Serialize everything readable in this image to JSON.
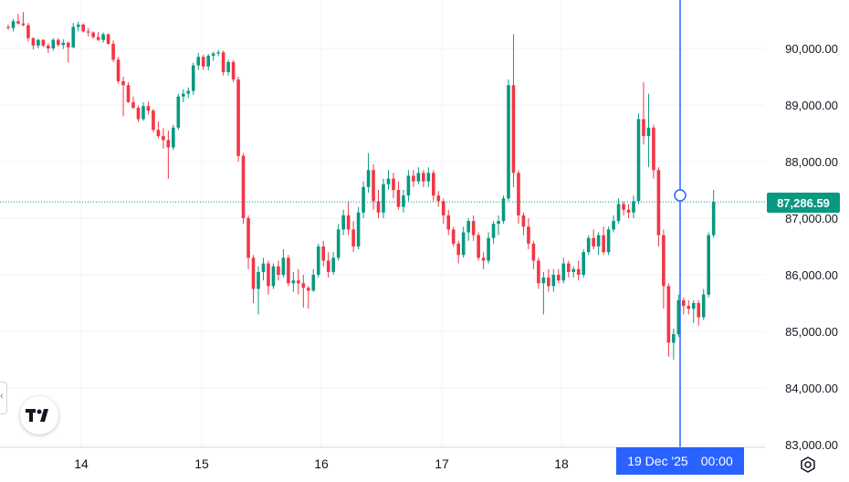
{
  "chart_data": {
    "type": "candlestick",
    "title": "",
    "xlabel": "",
    "ylabel": "",
    "ylim": [
      83000,
      90600
    ],
    "y_ticks": [
      "90,000.00",
      "89,000.00",
      "88,000.00",
      "87,000.00",
      "86,000.00",
      "85,000.00",
      "84,000.00",
      "83,000.00"
    ],
    "x_ticks": [
      "14",
      "15",
      "16",
      "17",
      "18"
    ],
    "last_price": "87,286.59",
    "crosshair_time": {
      "date": "19 Dec '25",
      "time": "00:00"
    },
    "candles": [
      [
        90380,
        90420,
        90330,
        90360
      ],
      [
        90360,
        90520,
        90300,
        90480
      ],
      [
        90480,
        90610,
        90420,
        90440
      ],
      [
        90440,
        90640,
        90390,
        90410
      ],
      [
        90410,
        90450,
        90120,
        90180
      ],
      [
        90180,
        90200,
        89980,
        90050
      ],
      [
        90050,
        90170,
        90000,
        90150
      ],
      [
        90150,
        90160,
        90020,
        90050
      ],
      [
        90050,
        90090,
        89920,
        90000
      ],
      [
        90000,
        90180,
        89960,
        90150
      ],
      [
        90150,
        90180,
        90030,
        90060
      ],
      [
        90060,
        90160,
        89990,
        90100
      ],
      [
        90100,
        90120,
        89750,
        90020
      ],
      [
        90020,
        90450,
        90000,
        90380
      ],
      [
        90380,
        90470,
        90300,
        90420
      ],
      [
        90420,
        90440,
        90280,
        90300
      ],
      [
        90300,
        90360,
        90210,
        90280
      ],
      [
        90280,
        90300,
        90170,
        90200
      ],
      [
        90200,
        90290,
        90130,
        90150
      ],
      [
        90150,
        90280,
        90100,
        90250
      ],
      [
        90250,
        90260,
        90060,
        90080
      ],
      [
        90080,
        90140,
        89760,
        89800
      ],
      [
        89800,
        89850,
        89380,
        89420
      ],
      [
        89420,
        89500,
        88800,
        89350
      ],
      [
        89350,
        89400,
        89040,
        89050
      ],
      [
        89050,
        89150,
        88930,
        88950
      ],
      [
        88950,
        88990,
        88700,
        88750
      ],
      [
        88750,
        89050,
        88720,
        88980
      ],
      [
        88980,
        89060,
        88830,
        88900
      ],
      [
        88900,
        88930,
        88520,
        88560
      ],
      [
        88560,
        88710,
        88410,
        88450
      ],
      [
        88450,
        88590,
        88230,
        88380
      ],
      [
        88380,
        88550,
        87700,
        88250
      ],
      [
        88250,
        88650,
        88200,
        88600
      ],
      [
        88600,
        89200,
        88560,
        89150
      ],
      [
        89150,
        89280,
        89050,
        89200
      ],
      [
        89200,
        89310,
        89120,
        89250
      ],
      [
        89250,
        89750,
        89180,
        89700
      ],
      [
        89700,
        89920,
        89620,
        89850
      ],
      [
        89850,
        89890,
        89620,
        89680
      ],
      [
        89680,
        89900,
        89610,
        89870
      ],
      [
        89870,
        89940,
        89780,
        89910
      ],
      [
        89910,
        89970,
        89860,
        89930
      ],
      [
        89930,
        89960,
        89520,
        89580
      ],
      [
        89580,
        89800,
        89520,
        89760
      ],
      [
        89760,
        89790,
        89400,
        89450
      ],
      [
        89450,
        89500,
        88000,
        88100
      ],
      [
        88100,
        88150,
        86900,
        87000
      ],
      [
        87000,
        87050,
        86100,
        86300
      ],
      [
        86300,
        86350,
        85500,
        85750
      ],
      [
        85750,
        86150,
        85300,
        86050
      ],
      [
        86050,
        86300,
        85900,
        86200
      ],
      [
        86200,
        86250,
        85650,
        85800
      ],
      [
        85800,
        86200,
        85750,
        86150
      ],
      [
        86150,
        86250,
        85900,
        86000
      ],
      [
        86000,
        86450,
        85950,
        86300
      ],
      [
        86300,
        86350,
        85800,
        85850
      ],
      [
        85850,
        86050,
        85700,
        85900
      ],
      [
        85900,
        86100,
        85650,
        85850
      ],
      [
        85850,
        86000,
        85420,
        85770
      ],
      [
        85770,
        85800,
        85400,
        85720
      ],
      [
        85720,
        86100,
        85700,
        86000
      ],
      [
        86000,
        86550,
        85950,
        86500
      ],
      [
        86500,
        86600,
        86150,
        86250
      ],
      [
        86250,
        86400,
        85950,
        86050
      ],
      [
        86050,
        86400,
        86000,
        86300
      ],
      [
        86300,
        86900,
        86250,
        86800
      ],
      [
        86800,
        87150,
        86700,
        87050
      ],
      [
        87050,
        87300,
        86700,
        86800
      ],
      [
        86800,
        86950,
        86400,
        86500
      ],
      [
        86500,
        87200,
        86450,
        87100
      ],
      [
        87100,
        87650,
        87000,
        87550
      ],
      [
        87550,
        88150,
        87450,
        87850
      ],
      [
        87850,
        87950,
        87150,
        87300
      ],
      [
        87300,
        87500,
        87000,
        87100
      ],
      [
        87100,
        87700,
        87000,
        87600
      ],
      [
        87600,
        87850,
        87500,
        87700
      ],
      [
        87700,
        87800,
        87350,
        87500
      ],
      [
        87500,
        87650,
        87150,
        87200
      ],
      [
        87200,
        87500,
        87100,
        87400
      ],
      [
        87400,
        87850,
        87300,
        87750
      ],
      [
        87750,
        87850,
        87550,
        87650
      ],
      [
        87650,
        87900,
        87600,
        87800
      ],
      [
        87800,
        87850,
        87550,
        87650
      ],
      [
        87650,
        87900,
        87550,
        87800
      ],
      [
        87800,
        87850,
        87300,
        87400
      ],
      [
        87400,
        87480,
        87200,
        87300
      ],
      [
        87300,
        87350,
        86900,
        87050
      ],
      [
        87050,
        87150,
        86700,
        86800
      ],
      [
        86800,
        86850,
        86500,
        86550
      ],
      [
        86550,
        86600,
        86200,
        86350
      ],
      [
        86350,
        86850,
        86300,
        86750
      ],
      [
        86750,
        87000,
        86600,
        86950
      ],
      [
        86950,
        87050,
        86600,
        86700
      ],
      [
        86700,
        86750,
        86250,
        86300
      ],
      [
        86300,
        86400,
        86100,
        86250
      ],
      [
        86250,
        86750,
        86200,
        86650
      ],
      [
        86650,
        86950,
        86550,
        86900
      ],
      [
        86900,
        87050,
        86700,
        86950
      ],
      [
        86950,
        87400,
        86900,
        87350
      ],
      [
        87350,
        89450,
        87300,
        89350
      ],
      [
        89350,
        90250,
        87550,
        87800
      ],
      [
        87800,
        87850,
        86900,
        87050
      ],
      [
        87050,
        87100,
        86700,
        86850
      ],
      [
        86850,
        87000,
        86450,
        86550
      ],
      [
        86550,
        86600,
        86100,
        86250
      ],
      [
        86250,
        86300,
        85750,
        85850
      ],
      [
        85850,
        86050,
        85300,
        85950
      ],
      [
        85950,
        86100,
        85700,
        85800
      ],
      [
        85800,
        86100,
        85700,
        86000
      ],
      [
        86000,
        86100,
        85850,
        85900
      ],
      [
        85900,
        86300,
        85850,
        86200
      ],
      [
        86200,
        86250,
        85950,
        86050
      ],
      [
        86050,
        86150,
        85950,
        86100
      ],
      [
        86100,
        86250,
        85900,
        86000
      ],
      [
        86000,
        86450,
        85950,
        86400
      ],
      [
        86400,
        86700,
        86350,
        86650
      ],
      [
        86650,
        86800,
        86450,
        86500
      ],
      [
        86500,
        86750,
        86350,
        86700
      ],
      [
        86700,
        86850,
        86350,
        86400
      ],
      [
        86400,
        86850,
        86350,
        86800
      ],
      [
        86800,
        87050,
        86750,
        86950
      ],
      [
        86950,
        87350,
        86900,
        87250
      ],
      [
        87250,
        87300,
        87050,
        87150
      ],
      [
        87150,
        87250,
        87000,
        87100
      ],
      [
        87100,
        87400,
        87000,
        87300
      ],
      [
        87300,
        88850,
        87250,
        88750
      ],
      [
        88750,
        89400,
        88300,
        88450
      ],
      [
        88450,
        89200,
        87900,
        88600
      ],
      [
        88600,
        88650,
        87700,
        87850
      ],
      [
        87850,
        87900,
        86500,
        86700
      ],
      [
        86700,
        86800,
        85400,
        85800
      ],
      [
        85800,
        85850,
        84550,
        84800
      ],
      [
        84800,
        85050,
        84500,
        84950
      ],
      [
        84950,
        85650,
        84900,
        85550
      ],
      [
        85550,
        85600,
        85300,
        85450
      ],
      [
        85450,
        85550,
        85300,
        85400
      ],
      [
        85400,
        85550,
        85150,
        85500
      ],
      [
        85500,
        85550,
        85100,
        85250
      ],
      [
        85250,
        85750,
        85200,
        85650
      ],
      [
        85650,
        86750,
        85600,
        86700
      ],
      [
        86700,
        87500,
        86650,
        87286
      ]
    ],
    "grid": true,
    "legend": "none"
  },
  "colors": {
    "up": "#089981",
    "down": "#f23645",
    "grid": "#f0f3fa",
    "crosshair": "#2962ff"
  },
  "icons": {
    "logo": "tradingview-logo-icon",
    "settings": "settings-icon",
    "handle": "left-handle-icon"
  }
}
